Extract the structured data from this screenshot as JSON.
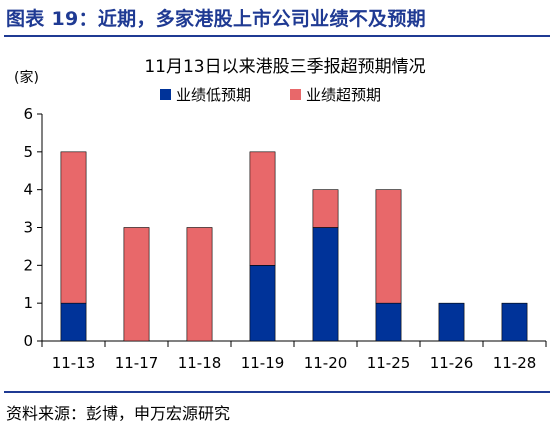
{
  "figure": {
    "title": "图表 19：近期，多家港股上市公司业绩不及预期",
    "source": "资料来源：彭博，申万宏源研究",
    "accent_color": "#1f3a93"
  },
  "chart_data": {
    "type": "bar",
    "stacked": true,
    "title": "11月13日以来港股三季报超预期情况",
    "unit_label": "(家)",
    "xlabel": "",
    "ylabel": "",
    "categories": [
      "11-13",
      "11-17",
      "11-18",
      "11-19",
      "11-20",
      "11-25",
      "11-26",
      "11-28"
    ],
    "series": [
      {
        "name": "业绩低预期",
        "color": "#003399",
        "values": [
          1,
          0,
          0,
          2,
          3,
          1,
          1,
          1
        ]
      },
      {
        "name": "业绩超预期",
        "color": "#e8686a",
        "values": [
          4,
          3,
          3,
          3,
          1,
          3,
          0,
          0
        ]
      }
    ],
    "ylim": [
      0,
      6
    ],
    "yticks": [
      0,
      1,
      2,
      3,
      4,
      5,
      6
    ],
    "grid": false,
    "legend_position": "top"
  }
}
